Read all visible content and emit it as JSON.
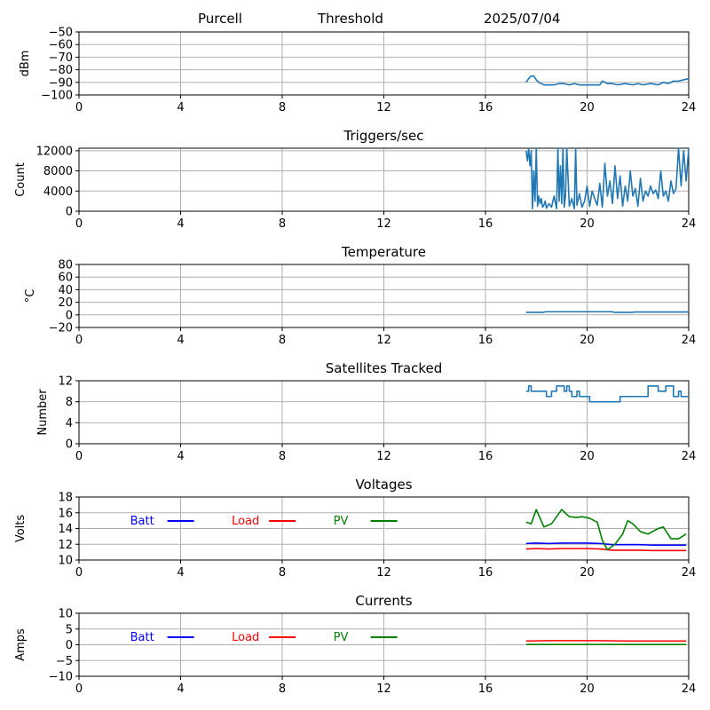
{
  "header": {
    "station": "Purcell",
    "mode": "Threshold",
    "date": "2025/07/04"
  },
  "colors": {
    "series": "#1f77b4",
    "batt": "#0000ff",
    "load": "#ff0000",
    "pv": "#008000",
    "grid": "#b0b0b0"
  },
  "chart_data": [
    {
      "type": "line",
      "title": "",
      "ylabel": "dBm",
      "xlim": [
        0,
        24
      ],
      "xticks": [
        0,
        4,
        8,
        12,
        16,
        20,
        24
      ],
      "ylim": [
        -100,
        -50
      ],
      "yticks": [
        -100,
        -90,
        -80,
        -70,
        -60,
        -50
      ],
      "yticklabels": [
        "−100",
        "−90",
        "−80",
        "−70",
        "−60",
        "−50"
      ],
      "grid": true,
      "series": [
        {
          "color": "#1f77b4",
          "x": [
            17.6,
            17.7,
            17.8,
            17.9,
            18.0,
            18.1,
            18.2,
            18.3,
            18.5,
            18.7,
            18.9,
            19.1,
            19.3,
            19.5,
            19.7,
            19.9,
            20.1,
            20.3,
            20.5,
            20.6,
            20.8,
            21.0,
            21.2,
            21.5,
            21.8,
            22.0,
            22.2,
            22.5,
            22.8,
            23.0,
            23.2,
            23.4,
            23.6,
            23.8,
            24.0
          ],
          "y": [
            -90,
            -87,
            -85,
            -85,
            -88,
            -90,
            -91,
            -92,
            -92,
            -92,
            -91,
            -91,
            -92,
            -91,
            -92,
            -92,
            -92,
            -92,
            -92,
            -89,
            -91,
            -91,
            -92,
            -91,
            -92,
            -91,
            -92,
            -91,
            -92,
            -90,
            -91,
            -89,
            -89,
            -88,
            -87
          ]
        }
      ]
    },
    {
      "type": "line",
      "title": "Triggers/sec",
      "ylabel": "Count",
      "xlim": [
        0,
        24
      ],
      "xticks": [
        0,
        4,
        8,
        12,
        16,
        20,
        24
      ],
      "ylim": [
        0,
        12500
      ],
      "yticks": [
        0,
        4000,
        8000,
        12000
      ],
      "yticklabels": [
        "0",
        "4000",
        "8000",
        "12000"
      ],
      "grid": true,
      "series": [
        {
          "color": "#1f77b4",
          "x": [
            17.6,
            17.65,
            17.7,
            17.75,
            17.8,
            17.85,
            17.9,
            17.95,
            18.0,
            18.05,
            18.1,
            18.15,
            18.2,
            18.25,
            18.3,
            18.35,
            18.4,
            18.5,
            18.6,
            18.7,
            18.8,
            18.85,
            18.9,
            18.95,
            19.0,
            19.05,
            19.1,
            19.15,
            19.2,
            19.3,
            19.4,
            19.5,
            19.55,
            19.6,
            19.7,
            19.8,
            19.9,
            20.0,
            20.1,
            20.2,
            20.3,
            20.4,
            20.5,
            20.6,
            20.7,
            20.8,
            20.9,
            21.0,
            21.1,
            21.2,
            21.3,
            21.4,
            21.5,
            21.6,
            21.7,
            21.8,
            21.9,
            22.0,
            22.1,
            22.2,
            22.3,
            22.4,
            22.5,
            22.6,
            22.7,
            22.8,
            22.9,
            23.0,
            23.1,
            23.2,
            23.3,
            23.4,
            23.5,
            23.6,
            23.7,
            23.8,
            23.9,
            24.0
          ],
          "y": [
            12000,
            10000,
            12500,
            9000,
            12000,
            500,
            8000,
            2000,
            12500,
            1000,
            3000,
            1500,
            2500,
            800,
            1200,
            2000,
            600,
            1500,
            800,
            3000,
            500,
            12500,
            2000,
            9000,
            1500,
            12500,
            800,
            3000,
            12500,
            1000,
            2500,
            500,
            12500,
            1200,
            3500,
            800,
            2000,
            5000,
            1000,
            4000,
            2500,
            1200,
            5500,
            800,
            9500,
            3000,
            6000,
            1500,
            9000,
            2500,
            7000,
            1000,
            5000,
            2000,
            8000,
            3000,
            4500,
            1000,
            6500,
            2000,
            4000,
            3000,
            5000,
            3500,
            4200,
            2500,
            8000,
            3000,
            4000,
            2000,
            6000,
            3500,
            4500,
            12500,
            5000,
            12000,
            6000,
            12500
          ]
        }
      ]
    },
    {
      "type": "line",
      "title": "Temperature",
      "ylabel": "°C",
      "xlim": [
        0,
        24
      ],
      "xticks": [
        0,
        4,
        8,
        12,
        16,
        20,
        24
      ],
      "ylim": [
        -20,
        80
      ],
      "yticks": [
        -20,
        0,
        20,
        40,
        60,
        80
      ],
      "yticklabels": [
        "−20",
        "0",
        "20",
        "40",
        "60",
        "80"
      ],
      "grid": true,
      "series": [
        {
          "color": "#1f77b4",
          "x": [
            17.6,
            18.3,
            18.35,
            21.0,
            21.05,
            21.8,
            21.85,
            24.0
          ],
          "y": [
            4,
            4,
            5,
            5,
            4,
            4,
            4.5,
            4.5
          ]
        }
      ]
    },
    {
      "type": "line",
      "title": "Satellites Tracked",
      "ylabel": "Number",
      "xlim": [
        0,
        24
      ],
      "xticks": [
        0,
        4,
        8,
        12,
        16,
        20,
        24
      ],
      "ylim": [
        0,
        12
      ],
      "yticks": [
        0,
        4,
        8,
        12
      ],
      "yticklabels": [
        "0",
        "4",
        "8",
        "12"
      ],
      "grid": true,
      "series": [
        {
          "color": "#1f77b4",
          "x": [
            17.6,
            17.7,
            17.8,
            18.3,
            18.4,
            18.6,
            18.7,
            18.8,
            19.0,
            19.1,
            19.2,
            19.3,
            19.4,
            19.6,
            19.7,
            20.0,
            20.1,
            21.2,
            21.3,
            22.3,
            22.4,
            22.7,
            22.8,
            23.0,
            23.1,
            23.4,
            23.5,
            23.6,
            23.7,
            24.0
          ],
          "y": [
            10,
            11,
            10,
            10,
            9,
            10,
            10,
            11,
            11,
            10,
            11,
            10,
            9,
            10,
            9,
            9,
            8,
            8,
            9,
            9,
            11,
            11,
            10,
            10,
            11,
            9,
            9,
            10,
            9,
            9
          ],
          "step": true
        }
      ]
    },
    {
      "type": "line",
      "title": "Voltages",
      "ylabel": "Volts",
      "xlim": [
        0,
        24
      ],
      "xticks": [
        0,
        4,
        8,
        12,
        16,
        20,
        24
      ],
      "ylim": [
        10,
        18
      ],
      "yticks": [
        10,
        12,
        14,
        16,
        18
      ],
      "yticklabels": [
        "10",
        "12",
        "14",
        "16",
        "18"
      ],
      "grid": true,
      "legend": [
        {
          "label": "Batt",
          "color": "#0000ff",
          "x": 1.0
        },
        {
          "label": "Load",
          "color": "#ff0000",
          "x": 5.0
        },
        {
          "label": "PV",
          "color": "#008000",
          "x": 9.0
        }
      ],
      "series": [
        {
          "name": "Batt",
          "color": "#0000ff",
          "x": [
            17.6,
            18.0,
            18.5,
            19.0,
            19.5,
            20.0,
            20.5,
            21.0,
            21.5,
            22.0,
            22.5,
            23.0,
            23.5,
            23.9
          ],
          "y": [
            12.1,
            12.15,
            12.1,
            12.15,
            12.15,
            12.15,
            12.1,
            11.95,
            11.95,
            11.95,
            11.9,
            11.9,
            11.9,
            11.9
          ]
        },
        {
          "name": "Load",
          "color": "#ff0000",
          "x": [
            17.6,
            18.0,
            18.5,
            19.0,
            19.5,
            20.0,
            20.5,
            21.0,
            21.5,
            22.0,
            22.5,
            23.0,
            23.5,
            23.9
          ],
          "y": [
            11.4,
            11.45,
            11.4,
            11.45,
            11.45,
            11.45,
            11.4,
            11.25,
            11.25,
            11.25,
            11.2,
            11.2,
            11.2,
            11.2
          ]
        },
        {
          "name": "PV",
          "color": "#008000",
          "x": [
            17.6,
            17.8,
            18.0,
            18.3,
            18.6,
            19.0,
            19.3,
            19.6,
            19.8,
            20.1,
            20.4,
            20.6,
            20.8,
            21.1,
            21.4,
            21.6,
            21.8,
            22.1,
            22.4,
            22.8,
            23.0,
            23.3,
            23.6,
            23.9
          ],
          "y": [
            14.8,
            14.6,
            16.4,
            14.2,
            14.6,
            16.4,
            15.5,
            15.4,
            15.5,
            15.3,
            14.8,
            12.5,
            11.3,
            12.0,
            13.3,
            15.0,
            14.6,
            13.6,
            13.3,
            14.0,
            14.2,
            12.7,
            12.7,
            13.3
          ]
        }
      ]
    },
    {
      "type": "line",
      "title": "Currents",
      "ylabel": "Amps",
      "xlim": [
        0,
        24
      ],
      "xticks": [
        0,
        4,
        8,
        12,
        16,
        20,
        24
      ],
      "ylim": [
        -10,
        10
      ],
      "yticks": [
        -10,
        -5,
        0,
        5,
        10
      ],
      "yticklabels": [
        "−10",
        "−5",
        "0",
        "5",
        "10"
      ],
      "grid": true,
      "legend": [
        {
          "label": "Batt",
          "color": "#0000ff",
          "x": 1.0
        },
        {
          "label": "Load",
          "color": "#ff0000",
          "x": 5.0
        },
        {
          "label": "PV",
          "color": "#008000",
          "x": 9.0
        }
      ],
      "series": [
        {
          "name": "Load",
          "color": "#ff0000",
          "x": [
            17.6,
            18.5,
            19.5,
            20.5,
            21.5,
            22.5,
            23.9
          ],
          "y": [
            1.2,
            1.3,
            1.3,
            1.3,
            1.2,
            1.2,
            1.2
          ]
        },
        {
          "name": "PV",
          "color": "#008000",
          "x": [
            17.6,
            23.9
          ],
          "y": [
            0.1,
            0.1
          ]
        }
      ]
    }
  ]
}
